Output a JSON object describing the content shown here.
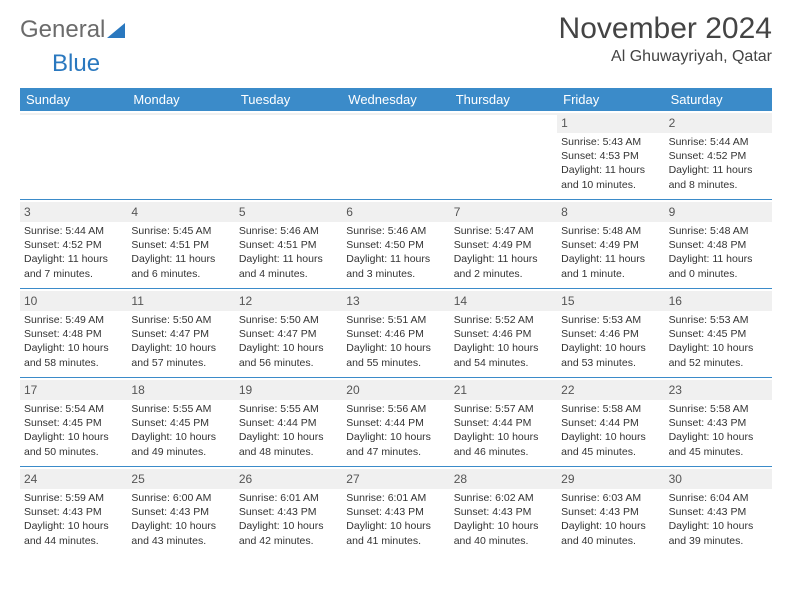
{
  "brand": {
    "part1": "General",
    "part2": "Blue"
  },
  "title": "November 2024",
  "location": "Al Ghuwayriyah, Qatar",
  "colors": {
    "header_bg": "#3b8bc9",
    "header_text": "#ffffff",
    "rule": "#3b8bc9",
    "daynum_bg": "#f0f0f0",
    "text": "#333333",
    "brand_blue": "#2a78bf",
    "brand_gray": "#6b6b6b"
  },
  "day_names": [
    "Sunday",
    "Monday",
    "Tuesday",
    "Wednesday",
    "Thursday",
    "Friday",
    "Saturday"
  ],
  "weeks": [
    [
      {
        "n": "",
        "sr": "",
        "ss": "",
        "dl": ""
      },
      {
        "n": "",
        "sr": "",
        "ss": "",
        "dl": ""
      },
      {
        "n": "",
        "sr": "",
        "ss": "",
        "dl": ""
      },
      {
        "n": "",
        "sr": "",
        "ss": "",
        "dl": ""
      },
      {
        "n": "",
        "sr": "",
        "ss": "",
        "dl": ""
      },
      {
        "n": "1",
        "sr": "Sunrise: 5:43 AM",
        "ss": "Sunset: 4:53 PM",
        "dl": "Daylight: 11 hours and 10 minutes."
      },
      {
        "n": "2",
        "sr": "Sunrise: 5:44 AM",
        "ss": "Sunset: 4:52 PM",
        "dl": "Daylight: 11 hours and 8 minutes."
      }
    ],
    [
      {
        "n": "3",
        "sr": "Sunrise: 5:44 AM",
        "ss": "Sunset: 4:52 PM",
        "dl": "Daylight: 11 hours and 7 minutes."
      },
      {
        "n": "4",
        "sr": "Sunrise: 5:45 AM",
        "ss": "Sunset: 4:51 PM",
        "dl": "Daylight: 11 hours and 6 minutes."
      },
      {
        "n": "5",
        "sr": "Sunrise: 5:46 AM",
        "ss": "Sunset: 4:51 PM",
        "dl": "Daylight: 11 hours and 4 minutes."
      },
      {
        "n": "6",
        "sr": "Sunrise: 5:46 AM",
        "ss": "Sunset: 4:50 PM",
        "dl": "Daylight: 11 hours and 3 minutes."
      },
      {
        "n": "7",
        "sr": "Sunrise: 5:47 AM",
        "ss": "Sunset: 4:49 PM",
        "dl": "Daylight: 11 hours and 2 minutes."
      },
      {
        "n": "8",
        "sr": "Sunrise: 5:48 AM",
        "ss": "Sunset: 4:49 PM",
        "dl": "Daylight: 11 hours and 1 minute."
      },
      {
        "n": "9",
        "sr": "Sunrise: 5:48 AM",
        "ss": "Sunset: 4:48 PM",
        "dl": "Daylight: 11 hours and 0 minutes."
      }
    ],
    [
      {
        "n": "10",
        "sr": "Sunrise: 5:49 AM",
        "ss": "Sunset: 4:48 PM",
        "dl": "Daylight: 10 hours and 58 minutes."
      },
      {
        "n": "11",
        "sr": "Sunrise: 5:50 AM",
        "ss": "Sunset: 4:47 PM",
        "dl": "Daylight: 10 hours and 57 minutes."
      },
      {
        "n": "12",
        "sr": "Sunrise: 5:50 AM",
        "ss": "Sunset: 4:47 PM",
        "dl": "Daylight: 10 hours and 56 minutes."
      },
      {
        "n": "13",
        "sr": "Sunrise: 5:51 AM",
        "ss": "Sunset: 4:46 PM",
        "dl": "Daylight: 10 hours and 55 minutes."
      },
      {
        "n": "14",
        "sr": "Sunrise: 5:52 AM",
        "ss": "Sunset: 4:46 PM",
        "dl": "Daylight: 10 hours and 54 minutes."
      },
      {
        "n": "15",
        "sr": "Sunrise: 5:53 AM",
        "ss": "Sunset: 4:46 PM",
        "dl": "Daylight: 10 hours and 53 minutes."
      },
      {
        "n": "16",
        "sr": "Sunrise: 5:53 AM",
        "ss": "Sunset: 4:45 PM",
        "dl": "Daylight: 10 hours and 52 minutes."
      }
    ],
    [
      {
        "n": "17",
        "sr": "Sunrise: 5:54 AM",
        "ss": "Sunset: 4:45 PM",
        "dl": "Daylight: 10 hours and 50 minutes."
      },
      {
        "n": "18",
        "sr": "Sunrise: 5:55 AM",
        "ss": "Sunset: 4:45 PM",
        "dl": "Daylight: 10 hours and 49 minutes."
      },
      {
        "n": "19",
        "sr": "Sunrise: 5:55 AM",
        "ss": "Sunset: 4:44 PM",
        "dl": "Daylight: 10 hours and 48 minutes."
      },
      {
        "n": "20",
        "sr": "Sunrise: 5:56 AM",
        "ss": "Sunset: 4:44 PM",
        "dl": "Daylight: 10 hours and 47 minutes."
      },
      {
        "n": "21",
        "sr": "Sunrise: 5:57 AM",
        "ss": "Sunset: 4:44 PM",
        "dl": "Daylight: 10 hours and 46 minutes."
      },
      {
        "n": "22",
        "sr": "Sunrise: 5:58 AM",
        "ss": "Sunset: 4:44 PM",
        "dl": "Daylight: 10 hours and 45 minutes."
      },
      {
        "n": "23",
        "sr": "Sunrise: 5:58 AM",
        "ss": "Sunset: 4:43 PM",
        "dl": "Daylight: 10 hours and 45 minutes."
      }
    ],
    [
      {
        "n": "24",
        "sr": "Sunrise: 5:59 AM",
        "ss": "Sunset: 4:43 PM",
        "dl": "Daylight: 10 hours and 44 minutes."
      },
      {
        "n": "25",
        "sr": "Sunrise: 6:00 AM",
        "ss": "Sunset: 4:43 PM",
        "dl": "Daylight: 10 hours and 43 minutes."
      },
      {
        "n": "26",
        "sr": "Sunrise: 6:01 AM",
        "ss": "Sunset: 4:43 PM",
        "dl": "Daylight: 10 hours and 42 minutes."
      },
      {
        "n": "27",
        "sr": "Sunrise: 6:01 AM",
        "ss": "Sunset: 4:43 PM",
        "dl": "Daylight: 10 hours and 41 minutes."
      },
      {
        "n": "28",
        "sr": "Sunrise: 6:02 AM",
        "ss": "Sunset: 4:43 PM",
        "dl": "Daylight: 10 hours and 40 minutes."
      },
      {
        "n": "29",
        "sr": "Sunrise: 6:03 AM",
        "ss": "Sunset: 4:43 PM",
        "dl": "Daylight: 10 hours and 40 minutes."
      },
      {
        "n": "30",
        "sr": "Sunrise: 6:04 AM",
        "ss": "Sunset: 4:43 PM",
        "dl": "Daylight: 10 hours and 39 minutes."
      }
    ]
  ]
}
